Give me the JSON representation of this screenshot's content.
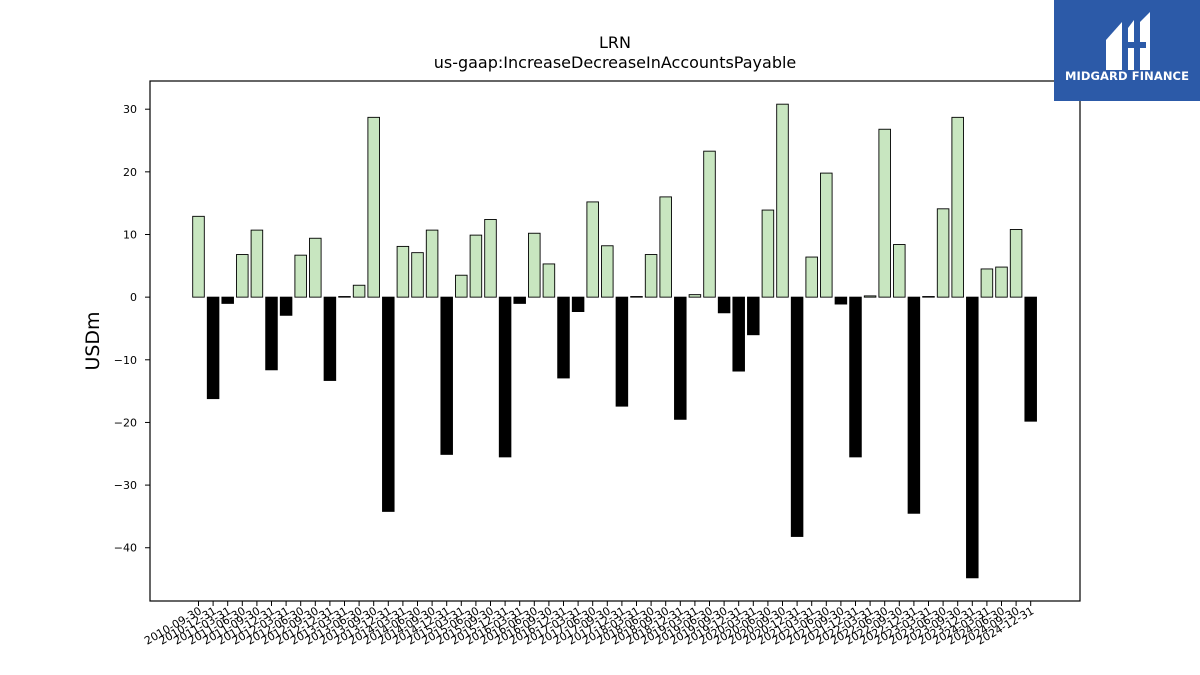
{
  "brand": {
    "name": "MIDGARD FINANCE",
    "bg_color": "#2c5aa8",
    "mark": "mh-monogram-logo"
  },
  "chart_data": {
    "type": "bar",
    "title": "LRN",
    "subtitle": "us-gaap:IncreaseDecreaseInAccountsPayable",
    "xlabel": "",
    "ylabel": "USDm",
    "ylim": [
      -48.5,
      34.5
    ],
    "yticks": [
      30,
      20,
      10,
      0,
      -10,
      -20,
      -30,
      -40
    ],
    "grid": false,
    "positive_color": "#c8e6c0",
    "negative_color": "#000000",
    "categories": [
      "2010-09-30",
      "2010-12-31",
      "2011-03-31",
      "2011-06-30",
      "2011-09-30",
      "2011-12-31",
      "2012-03-31",
      "2012-06-30",
      "2012-09-30",
      "2012-12-31",
      "2013-03-31",
      "2013-06-30",
      "2013-09-30",
      "2013-12-31",
      "2014-03-31",
      "2014-06-30",
      "2014-09-30",
      "2014-12-31",
      "2015-03-31",
      "2015-06-30",
      "2015-09-30",
      "2015-12-31",
      "2016-03-31",
      "2016-06-30",
      "2016-09-30",
      "2016-12-31",
      "2017-03-31",
      "2017-06-30",
      "2017-09-30",
      "2017-12-31",
      "2018-03-31",
      "2018-06-30",
      "2018-09-30",
      "2018-12-31",
      "2019-03-31",
      "2019-06-30",
      "2019-09-30",
      "2019-12-31",
      "2020-03-31",
      "2020-06-30",
      "2020-09-30",
      "2020-12-31",
      "2021-03-31",
      "2021-06-30",
      "2021-09-30",
      "2021-12-31",
      "2022-03-31",
      "2022-06-30",
      "2022-09-30",
      "2022-12-31",
      "2023-03-31",
      "2023-06-30",
      "2023-09-30",
      "2023-12-31",
      "2024-03-31",
      "2024-06-30",
      "2024-09-30",
      "2024-12-31"
    ],
    "values": [
      12.9,
      -16.2,
      -1.0,
      6.8,
      10.7,
      -11.6,
      -2.9,
      6.7,
      9.4,
      -13.3,
      0.1,
      1.9,
      28.7,
      -34.2,
      8.1,
      7.1,
      10.7,
      -25.1,
      3.5,
      9.9,
      12.4,
      -25.5,
      -1.0,
      10.2,
      5.3,
      -12.9,
      -2.3,
      15.2,
      8.2,
      -17.4,
      0.1,
      6.8,
      16.0,
      -19.5,
      0.4,
      23.3,
      -2.5,
      -11.8,
      -6.0,
      13.9,
      30.8,
      -38.2,
      6.4,
      19.8,
      -1.1,
      -25.5,
      0.2,
      26.8,
      8.4,
      -34.5,
      0.1,
      14.1,
      28.7,
      -44.8,
      4.5,
      4.8,
      10.8,
      -19.8
    ]
  }
}
